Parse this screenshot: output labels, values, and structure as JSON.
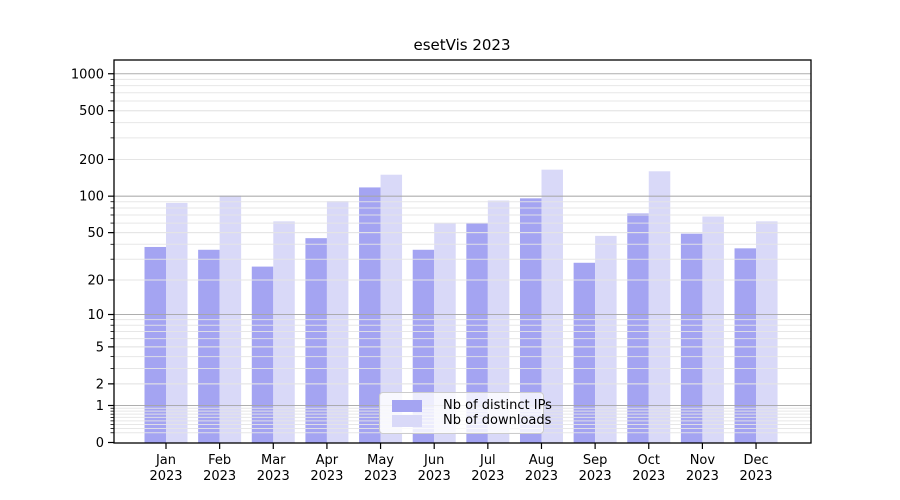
{
  "chart_data": {
    "type": "bar",
    "title": "esetVis 2023",
    "categories": [
      "Jan",
      "Feb",
      "Mar",
      "Apr",
      "May",
      "Jun",
      "Jul",
      "Aug",
      "Sep",
      "Oct",
      "Nov",
      "Dec"
    ],
    "year_suffix": "2023",
    "series": [
      {
        "name": "Nb of distinct IPs",
        "color": "#a4a4f2",
        "values": [
          38,
          36,
          26,
          45,
          118,
          36,
          60,
          96,
          28,
          72,
          49,
          37
        ]
      },
      {
        "name": "Nb of downloads",
        "color": "#d9d9f8",
        "values": [
          88,
          101,
          62,
          91,
          150,
          60,
          92,
          165,
          47,
          160,
          68,
          62
        ]
      }
    ],
    "xlabel": "",
    "ylabel": "",
    "yscale": "log1p",
    "y_ticks": [
      0,
      1,
      2,
      5,
      10,
      20,
      50,
      100,
      200,
      500,
      1000
    ],
    "y_major_gridlines": [
      1,
      10,
      100,
      1000
    ],
    "ylim": [
      0,
      1280
    ],
    "grid": "on",
    "legend_position": "lower-center",
    "colors": {
      "axis": "#000000",
      "major_grid": "rgba(165,165,165,0.9)",
      "minor_grid": "rgba(228,228,228,0.9)",
      "legend_border": "#cccccc",
      "legend_background": "rgba(255,255,255,0.8)",
      "plot_background": "#ffffff"
    }
  }
}
